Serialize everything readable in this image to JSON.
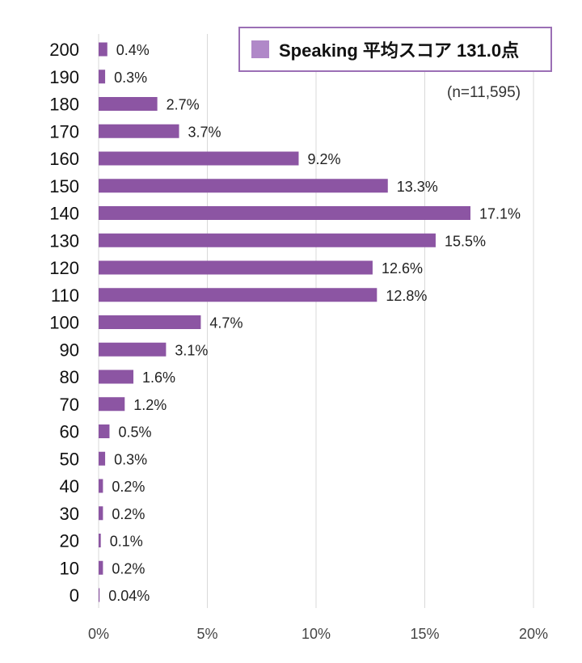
{
  "chart_data": {
    "type": "bar",
    "orientation": "horizontal",
    "categories": [
      "200",
      "190",
      "180",
      "170",
      "160",
      "150",
      "140",
      "130",
      "120",
      "110",
      "100",
      "90",
      "80",
      "70",
      "60",
      "50",
      "40",
      "30",
      "20",
      "10",
      "0"
    ],
    "values": [
      0.4,
      0.3,
      2.7,
      3.7,
      9.2,
      13.3,
      17.1,
      15.5,
      12.6,
      12.8,
      4.7,
      3.1,
      1.6,
      1.2,
      0.5,
      0.3,
      0.2,
      0.2,
      0.1,
      0.2,
      0.04
    ],
    "value_labels": [
      "0.4%",
      "0.3%",
      "2.7%",
      "3.7%",
      "9.2%",
      "13.3%",
      "17.1%",
      "15.5%",
      "12.6%",
      "12.8%",
      "4.7%",
      "3.1%",
      "1.6%",
      "1.2%",
      "0.5%",
      "0.3%",
      "0.2%",
      "0.2%",
      "0.1%",
      "0.2%",
      "0.04%"
    ],
    "series": [
      {
        "name": "Speaking 平均スコア 131.0点",
        "color": "#8c55a3"
      }
    ],
    "xlim": [
      0,
      20
    ],
    "x_ticks": [
      0,
      5,
      10,
      15,
      20
    ],
    "x_tick_labels": [
      "0%",
      "5%",
      "10%",
      "15%",
      "20%"
    ],
    "grid": "vertical",
    "legend_position": "top-right",
    "annotation": "(n=11,595)",
    "title": "",
    "xlabel": "",
    "ylabel": ""
  },
  "colors": {
    "bar": "#8c55a3",
    "legend_swatch": "#b088c8",
    "legend_border": "#9b6fb5",
    "grid": "#d9d9d9"
  }
}
